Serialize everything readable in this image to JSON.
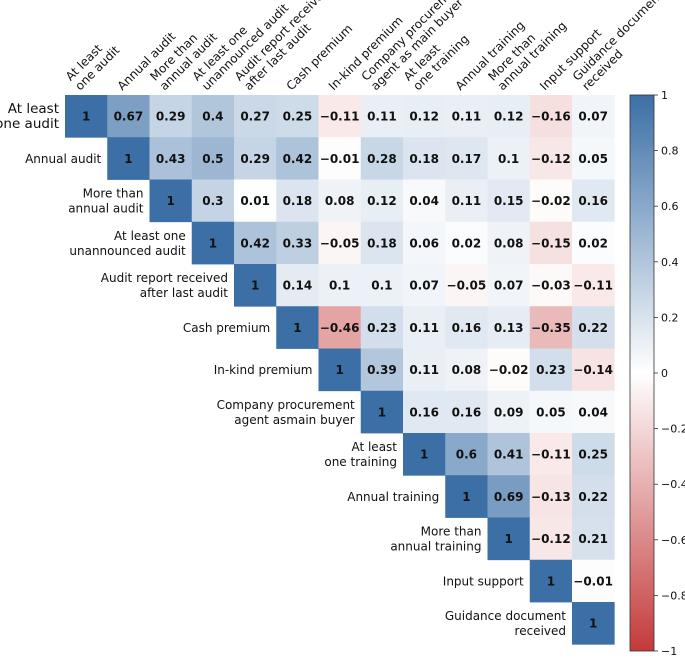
{
  "chart_data": {
    "type": "heatmap",
    "title": "",
    "labels": [
      [
        "At least",
        "one audit"
      ],
      [
        "Annual audit"
      ],
      [
        "More than",
        "annual audit"
      ],
      [
        "At least one",
        "unannounced audit"
      ],
      [
        "Audit report received",
        "after last audit"
      ],
      [
        "Cash premium"
      ],
      [
        "In-kind premium"
      ],
      [
        "Company procurement",
        "agent asmain buyer"
      ],
      [
        "At least",
        "one training"
      ],
      [
        "Annual training"
      ],
      [
        "More than",
        "annual training"
      ],
      [
        "Input support"
      ],
      [
        "Guidance document",
        "received"
      ]
    ],
    "column_labels": [
      [
        "At least",
        "one audit"
      ],
      [
        "Annual audit"
      ],
      [
        "More than",
        "annual audit"
      ],
      [
        "At least one",
        "unannounced audit"
      ],
      [
        "Audit report received",
        "after last audit"
      ],
      [
        "Cash premium"
      ],
      [
        "In-kind premium"
      ],
      [
        "Company procurement",
        "agent as main buyer"
      ],
      [
        "At least",
        "one training"
      ],
      [
        "Annual training"
      ],
      [
        "More than",
        "annual training"
      ],
      [
        "Input support"
      ],
      [
        "Guidance document",
        "received"
      ]
    ],
    "matrix_upper": [
      [
        1,
        0.67,
        0.29,
        0.4,
        0.27,
        0.25,
        -0.11,
        0.11,
        0.12,
        0.11,
        0.12,
        -0.16,
        0.07
      ],
      [
        1,
        0.43,
        0.5,
        0.29,
        0.42,
        -0.01,
        0.28,
        0.18,
        0.17,
        0.1,
        -0.12,
        0.05
      ],
      [
        1,
        0.3,
        0.01,
        0.18,
        0.08,
        0.12,
        0.04,
        0.11,
        0.15,
        -0.02,
        0.16
      ],
      [
        1,
        0.42,
        0.33,
        -0.05,
        0.18,
        0.06,
        0.02,
        0.08,
        -0.15,
        0.02
      ],
      [
        1,
        0.14,
        0.1,
        0.1,
        0.07,
        -0.05,
        0.07,
        -0.03,
        -0.11
      ],
      [
        1,
        -0.46,
        0.23,
        0.11,
        0.16,
        0.13,
        -0.35,
        0.22
      ],
      [
        1,
        0.39,
        0.11,
        0.08,
        -0.02,
        0.23,
        -0.14
      ],
      [
        1,
        0.16,
        0.16,
        0.09,
        0.05,
        0.04
      ],
      [
        1,
        0.6,
        0.41,
        -0.11,
        0.25
      ],
      [
        1,
        0.69,
        -0.13,
        0.22
      ],
      [
        1,
        -0.12,
        0.21
      ],
      [
        1,
        -0.01
      ],
      [
        1
      ]
    ],
    "colorbar": {
      "range": [
        -1,
        1
      ],
      "ticks": [
        1,
        0.8,
        0.6,
        0.4,
        0.2,
        0,
        -0.2,
        -0.4,
        -0.6,
        -0.8,
        -1
      ],
      "low_color": "#c43a3a",
      "mid_color": "#ffffff",
      "high_color": "#3b6fa6"
    }
  }
}
